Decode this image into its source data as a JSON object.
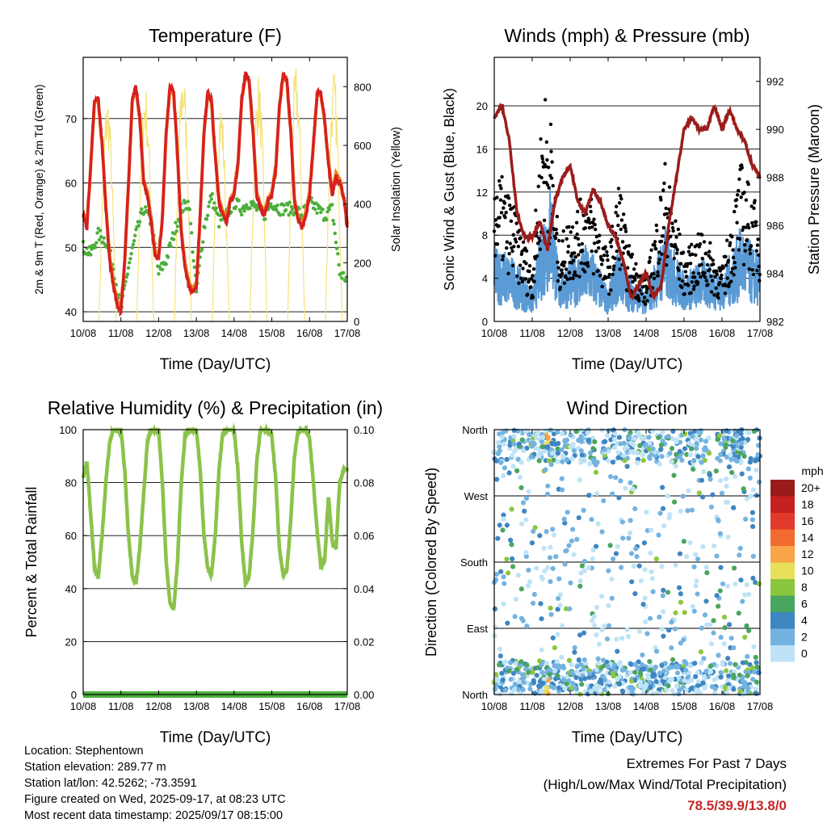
{
  "chart_data": [
    {
      "type": "line",
      "title": "Temperature (F)",
      "xlabel": "Time (Day/UTC)",
      "ylabel": "2m & 9m T (Red, Orange) & 2m Td (Green)",
      "y2label": "Solar Insolation (Yellow)",
      "x_ticks": [
        "10/08",
        "11/08",
        "12/08",
        "13/08",
        "14/08",
        "15/08",
        "16/08",
        "17/08"
      ],
      "ylim": [
        38.5,
        79.5
      ],
      "y_ticks": [
        40,
        50,
        60,
        70
      ],
      "y2lim": [
        0,
        900
      ],
      "y2_ticks": [
        0,
        200,
        400,
        600,
        800
      ],
      "grid": true,
      "series": [
        {
          "name": "2m T",
          "color": "#d62020",
          "x": [
            0.0,
            0.1,
            0.2,
            0.3,
            0.4,
            0.5,
            0.6,
            0.7,
            0.8,
            0.9,
            1.0,
            1.1,
            1.2,
            1.3,
            1.4,
            1.5,
            1.6,
            1.7,
            1.8,
            1.9,
            2.0,
            2.1,
            2.2,
            2.3,
            2.4,
            2.5,
            2.6,
            2.7,
            2.8,
            2.9,
            3.0,
            3.1,
            3.2,
            3.3,
            3.4,
            3.5,
            3.6,
            3.7,
            3.8,
            3.9,
            4.0,
            4.1,
            4.2,
            4.3,
            4.4,
            4.5,
            4.6,
            4.7,
            4.8,
            4.9,
            5.0,
            5.1,
            5.2,
            5.3,
            5.4,
            5.5,
            5.6,
            5.7,
            5.8,
            5.9,
            6.0,
            6.1,
            6.2,
            6.3,
            6.4,
            6.5,
            6.6,
            6.7,
            6.8,
            6.9,
            7.0
          ],
          "y": [
            55,
            53,
            63,
            73,
            73,
            66,
            56,
            48,
            44,
            41,
            40,
            48,
            60,
            73,
            75,
            70,
            60,
            58,
            54,
            49,
            48,
            55,
            68,
            75,
            74,
            64,
            52,
            47,
            44,
            43,
            44,
            55,
            68,
            74,
            73,
            64,
            57,
            55,
            54,
            57,
            58,
            63,
            73,
            77,
            76,
            68,
            58,
            56,
            55,
            57,
            58,
            62,
            72,
            77,
            76,
            68,
            57,
            54,
            53,
            55,
            58,
            66,
            74,
            74,
            70,
            63,
            58,
            61,
            60,
            58,
            53
          ]
        },
        {
          "name": "9m T",
          "color": "#f08020",
          "x": [
            0.0,
            0.5,
            1.0,
            1.5,
            1.7,
            1.8,
            2.0,
            2.5,
            3.0,
            3.5,
            4.0,
            4.5,
            5.0,
            5.5,
            6.0,
            6.5,
            6.7,
            7.0
          ],
          "y": [
            55,
            67,
            41,
            70,
            64,
            63,
            49,
            73,
            45,
            65,
            60,
            69,
            60,
            69,
            60,
            65,
            63,
            55
          ]
        },
        {
          "name": "2m Td",
          "color": "#4caf3c",
          "x": [
            0.0,
            0.2,
            0.4,
            0.6,
            0.8,
            1.0,
            1.2,
            1.4,
            1.6,
            1.8,
            2.0,
            2.2,
            2.4,
            2.6,
            2.8,
            3.0,
            3.2,
            3.4,
            3.6,
            3.8,
            4.0,
            4.2,
            4.4,
            4.6,
            4.8,
            5.0,
            5.2,
            5.4,
            5.6,
            5.8,
            6.0,
            6.2,
            6.4,
            6.6,
            6.8,
            7.0
          ],
          "y": [
            50,
            49,
            52,
            51,
            47,
            40,
            47,
            52,
            56,
            54,
            46,
            48,
            52,
            56,
            57,
            43,
            53,
            58,
            54,
            55,
            57,
            56,
            57,
            56,
            55,
            57,
            56,
            56,
            56,
            55,
            57,
            56,
            55,
            56,
            46,
            45
          ]
        },
        {
          "name": "Solar Insolation",
          "color": "#f4e27a",
          "axis": "y2",
          "days": [
            0,
            1,
            2,
            3,
            4,
            5,
            6
          ],
          "peaks": [
            780,
            820,
            880,
            760,
            850,
            880,
            860
          ]
        }
      ]
    },
    {
      "type": "line",
      "title": "Winds (mph) & Pressure (mb)",
      "xlabel": "Time (Day/UTC)",
      "ylabel": "Sonic Wind & Gust (Blue, Black)",
      "y2label": "Station Pressure (Maroon)",
      "x_ticks": [
        "10/08",
        "11/08",
        "12/08",
        "13/08",
        "14/08",
        "15/08",
        "16/08",
        "17/08"
      ],
      "ylim": [
        0,
        24.5
      ],
      "y_ticks": [
        0,
        4,
        8,
        12,
        16,
        20
      ],
      "y2lim": [
        982,
        993
      ],
      "y2_ticks": [
        982,
        984,
        986,
        988,
        990,
        992
      ],
      "grid": true,
      "series": [
        {
          "name": "Sonic Wind",
          "color": "#5b9bd5",
          "x": [
            0.0,
            0.5,
            1.0,
            1.3,
            1.5,
            1.7,
            2.0,
            2.5,
            3.0,
            3.3,
            3.5,
            4.0,
            4.5,
            5.0,
            5.5,
            6.0,
            6.5,
            7.0
          ],
          "y": [
            5,
            4,
            2,
            7,
            9,
            3,
            4,
            5,
            2,
            5,
            3,
            2,
            6,
            3,
            4,
            3,
            6,
            4
          ]
        },
        {
          "name": "Gust",
          "color": "#000000",
          "x": [
            0.0,
            0.5,
            1.0,
            1.3,
            1.5,
            1.7,
            2.0,
            2.5,
            3.0,
            3.3,
            3.5,
            4.0,
            4.5,
            5.0,
            5.5,
            6.0,
            6.5,
            7.0
          ],
          "y": [
            12,
            9,
            4,
            18,
            15,
            6,
            8,
            10,
            5,
            11,
            6,
            3,
            12,
            5,
            7,
            4,
            12,
            8
          ]
        },
        {
          "name": "Station Pressure",
          "color": "#9b1c1c",
          "axis": "y2",
          "x": [
            0.0,
            0.2,
            0.4,
            0.6,
            0.8,
            1.0,
            1.2,
            1.4,
            1.6,
            1.8,
            2.0,
            2.2,
            2.4,
            2.6,
            2.8,
            3.0,
            3.2,
            3.4,
            3.6,
            3.8,
            4.0,
            4.2,
            4.4,
            4.6,
            4.8,
            5.0,
            5.2,
            5.4,
            5.6,
            5.8,
            6.0,
            6.2,
            6.4,
            6.6,
            6.8,
            7.0
          ],
          "y": [
            990.5,
            991.0,
            989.5,
            986.5,
            985.5,
            985.5,
            986.2,
            985.0,
            987.0,
            988.0,
            988.5,
            987.0,
            986.5,
            987.5,
            987.0,
            986.0,
            985.5,
            984.5,
            983.0,
            983.5,
            984.0,
            983.0,
            983.5,
            986.0,
            988.0,
            990.0,
            990.5,
            990.0,
            990.0,
            991.0,
            990.0,
            990.8,
            990.0,
            989.5,
            988.5,
            988.0
          ]
        }
      ]
    },
    {
      "type": "line",
      "title": "Relative Humidity (%) & Precipitation (in)",
      "xlabel": "Time (Day/UTC)",
      "ylabel": "Percent & Total Rainfall",
      "x_ticks": [
        "10/08",
        "11/08",
        "12/08",
        "13/08",
        "14/08",
        "15/08",
        "16/08",
        "17/08"
      ],
      "ylim": [
        0,
        100
      ],
      "y_ticks": [
        0,
        20,
        40,
        60,
        80,
        100
      ],
      "y2lim": [
        0,
        0.1
      ],
      "y2_ticks": [
        "0.00",
        "0.02",
        "0.04",
        "0.06",
        "0.08",
        "0.10"
      ],
      "grid": true,
      "series": [
        {
          "name": "Relative Humidity",
          "color": "#8bc34a",
          "x": [
            0.0,
            0.1,
            0.2,
            0.3,
            0.4,
            0.5,
            0.6,
            0.7,
            0.8,
            0.9,
            1.0,
            1.1,
            1.2,
            1.3,
            1.4,
            1.5,
            1.6,
            1.7,
            1.8,
            1.9,
            2.0,
            2.1,
            2.2,
            2.3,
            2.4,
            2.5,
            2.6,
            2.7,
            2.8,
            2.9,
            3.0,
            3.1,
            3.2,
            3.3,
            3.4,
            3.5,
            3.6,
            3.7,
            3.8,
            3.9,
            4.0,
            4.1,
            4.2,
            4.3,
            4.4,
            4.5,
            4.6,
            4.7,
            4.8,
            4.9,
            5.0,
            5.1,
            5.2,
            5.3,
            5.4,
            5.5,
            5.6,
            5.7,
            5.8,
            5.9,
            6.0,
            6.1,
            6.2,
            6.3,
            6.4,
            6.5,
            6.6,
            6.7,
            6.8,
            6.9,
            7.0
          ],
          "y": [
            82,
            88,
            68,
            48,
            44,
            60,
            80,
            95,
            100,
            100,
            100,
            85,
            60,
            45,
            42,
            55,
            75,
            95,
            100,
            100,
            100,
            80,
            50,
            35,
            32,
            50,
            80,
            98,
            100,
            100,
            100,
            85,
            60,
            48,
            45,
            60,
            85,
            99,
            100,
            100,
            100,
            85,
            58,
            42,
            45,
            62,
            88,
            100,
            100,
            100,
            98,
            82,
            55,
            45,
            47,
            65,
            90,
            100,
            100,
            100,
            97,
            80,
            62,
            48,
            50,
            75,
            58,
            55,
            80,
            85,
            85
          ]
        },
        {
          "name": "Total Precipitation",
          "color": "#4caf3c",
          "axis": "y2",
          "x": [
            0,
            7
          ],
          "y": [
            0,
            0
          ]
        }
      ]
    },
    {
      "type": "scatter",
      "title": "Wind Direction",
      "xlabel": "Time (Day/UTC)",
      "ylabel": "Direction (Colored By Speed)",
      "x_ticks": [
        "10/08",
        "11/08",
        "12/08",
        "13/08",
        "14/08",
        "15/08",
        "16/08",
        "17/08"
      ],
      "y_ticks": [
        "North",
        "East",
        "South",
        "West",
        "North"
      ],
      "ylim": [
        0,
        360
      ],
      "grid": true,
      "legend": {
        "title": "mph",
        "labels": [
          "20+",
          "18",
          "16",
          "14",
          "12",
          "10",
          "8",
          "6",
          "4",
          "2",
          "0"
        ],
        "colors": [
          "#9b1b1b",
          "#c62020",
          "#e03a2a",
          "#f26b2e",
          "#f8a447",
          "#e8df5a",
          "#8cc63f",
          "#4aa55e",
          "#3f85c1",
          "#74b3e0",
          "#bfe3f6"
        ]
      }
    }
  ],
  "info": {
    "location": "Location: Stephentown",
    "elevation": "Station elevation: 289.77 m",
    "latlon": "Station lat/lon: 42.5262; -73.3591",
    "created": "Figure created on Wed, 2025-09-17, at 08:23 UTC",
    "timestamp": "Most recent data timestamp: 2025/09/17 08:15:00"
  },
  "extremes": {
    "title": "Extremes For Past 7 Days",
    "subtitle": "(High/Low/Max Wind/Total Precipitation)",
    "values": "78.5/39.9/13.8/0"
  }
}
